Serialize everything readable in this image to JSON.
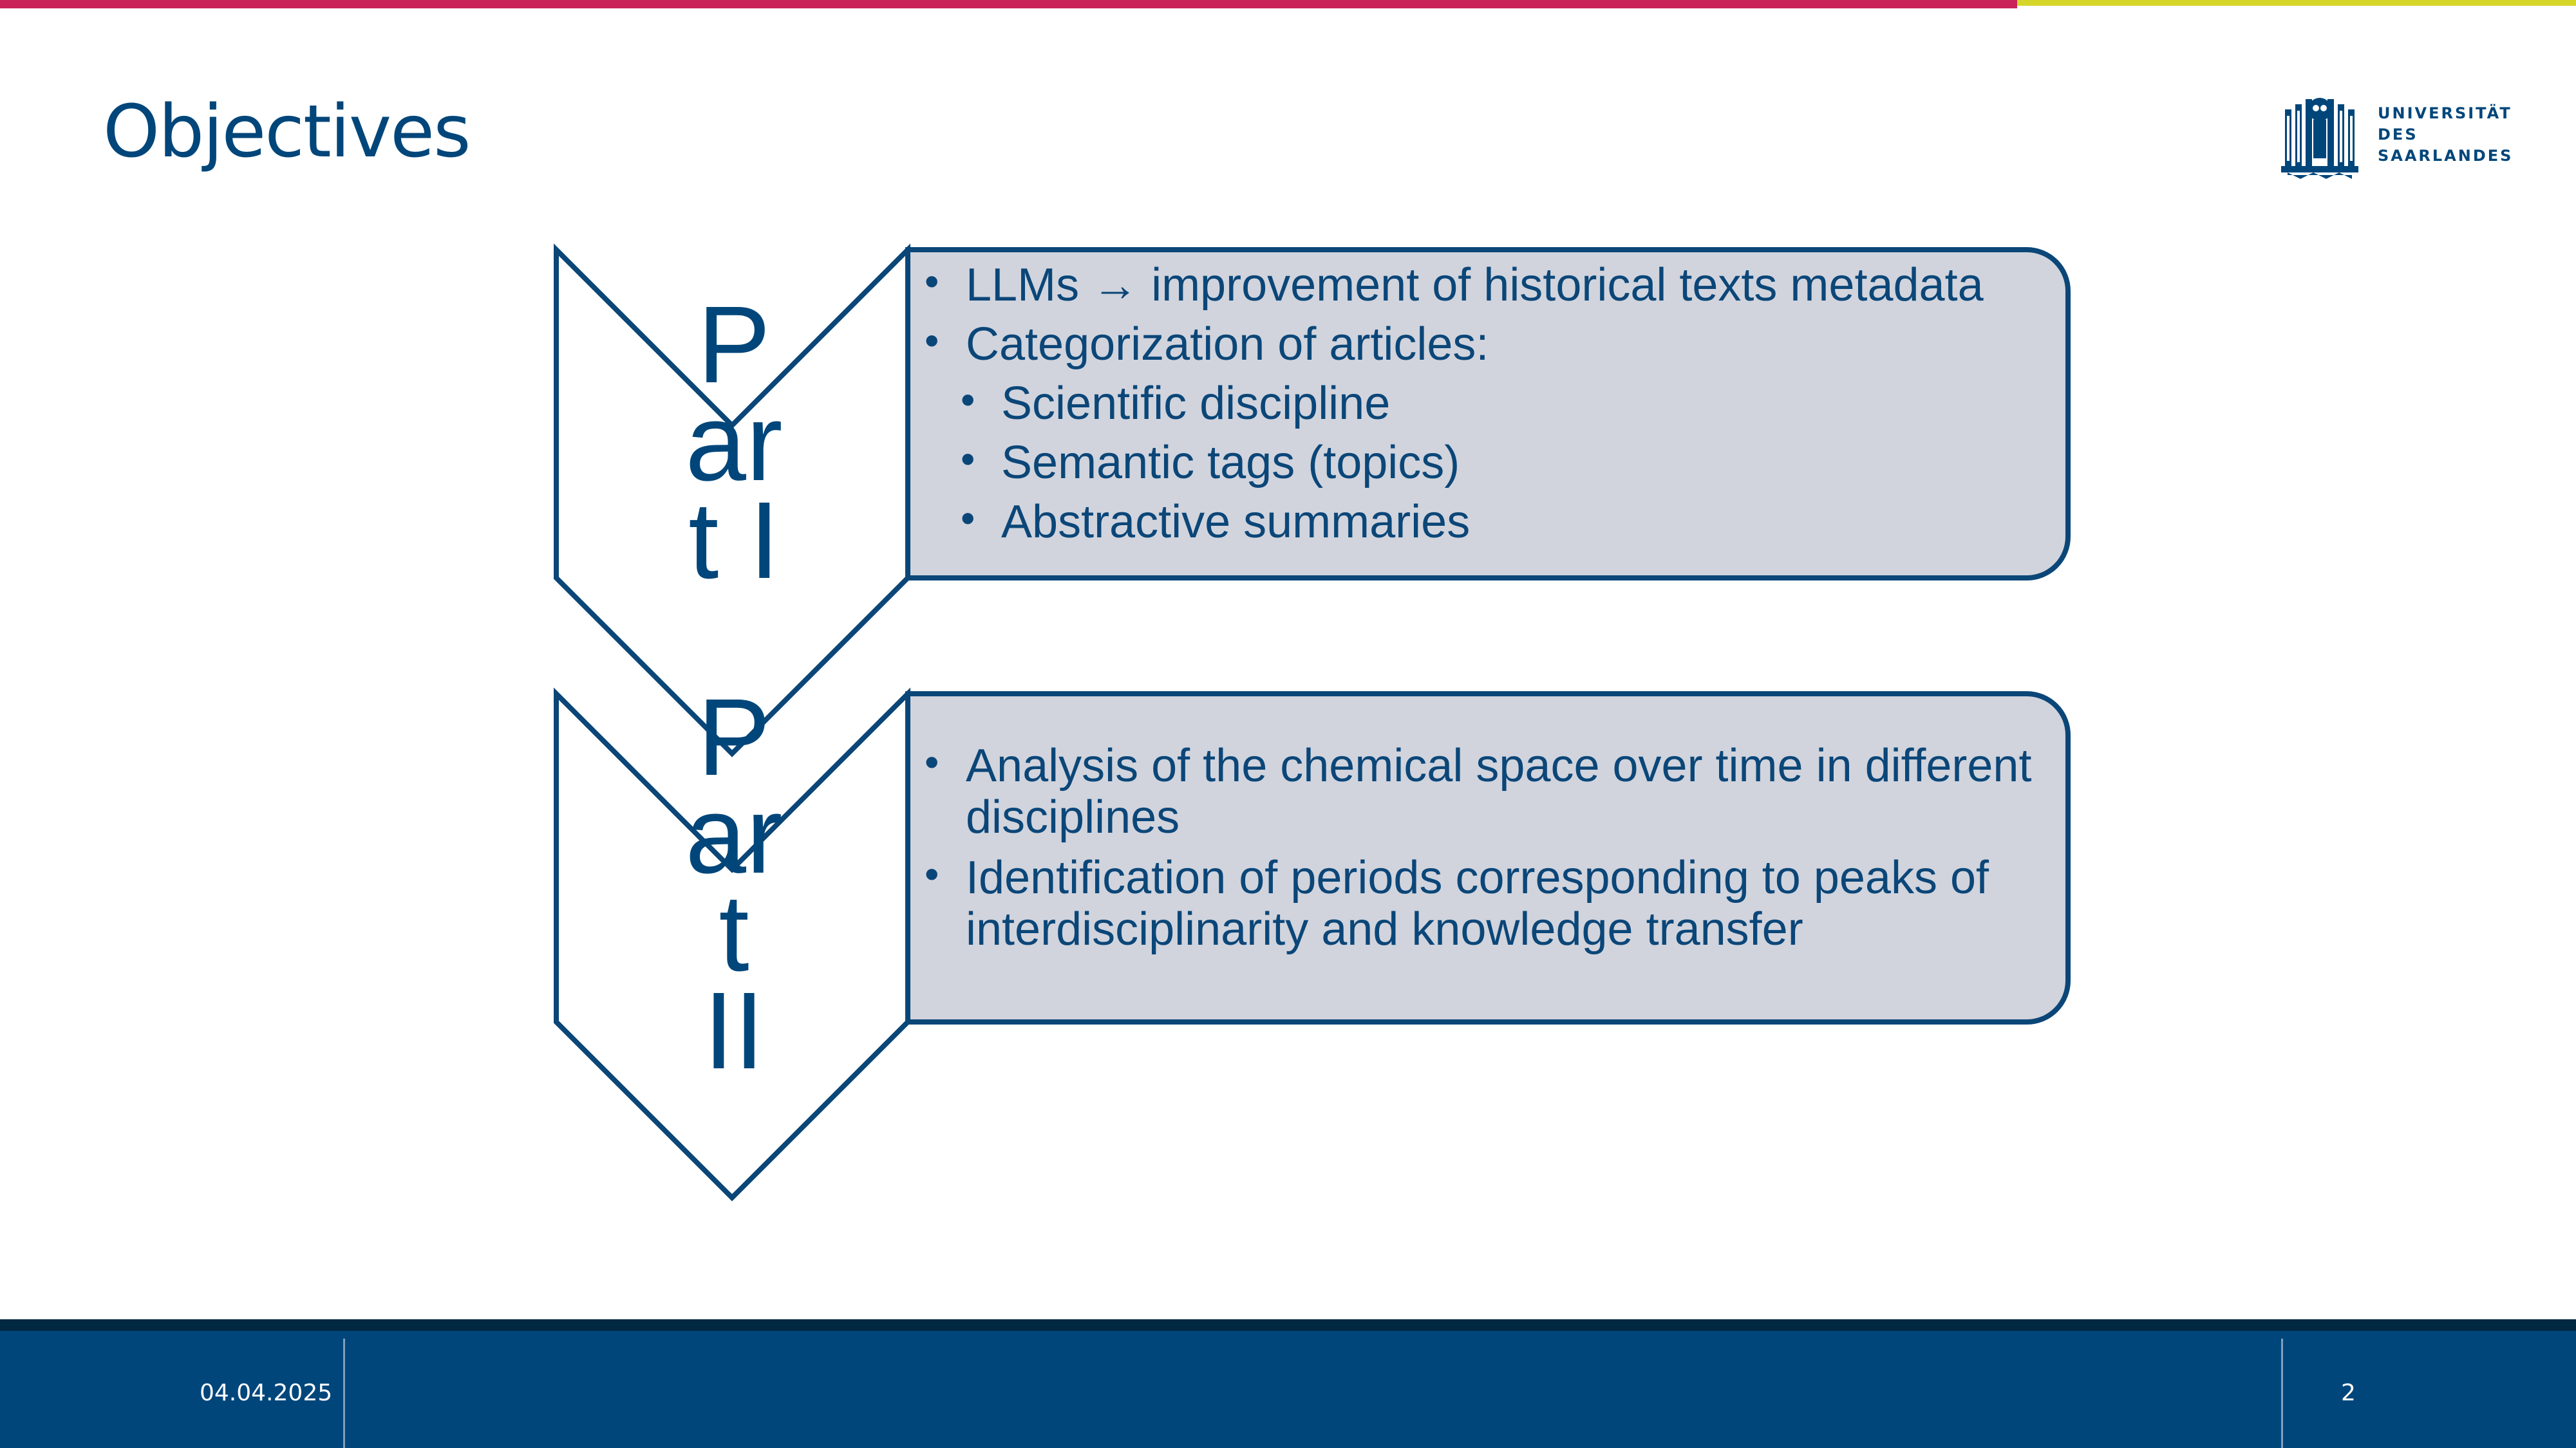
{
  "slide": {
    "title": "Objectives",
    "logo_lines": [
      "UNIVERSITÄT",
      "DES",
      "SAARLANDES"
    ],
    "colors": {
      "accent_magenta": "#c9235a",
      "accent_yellow": "#d6d62a",
      "brand_blue": "#00467a",
      "panel_fill": "#d1d4dd"
    }
  },
  "parts": [
    {
      "label_lines": [
        "P",
        "ar",
        "t I"
      ],
      "bullets": [
        {
          "text": "LLMs → improvement of historical texts metadata",
          "level": 1
        },
        {
          "text": "Categorization of articles:",
          "level": 1
        },
        {
          "text": "Scientific discipline",
          "level": 2
        },
        {
          "text": "Semantic tags (topics)",
          "level": 2
        },
        {
          "text": "Abstractive summaries",
          "level": 2
        }
      ]
    },
    {
      "label_lines": [
        "P",
        "ar",
        "t",
        "II"
      ],
      "bullets": [
        {
          "text": "Analysis of the chemical space over time in different disciplines",
          "level": 1
        },
        {
          "text": "Identification of periods corresponding to peaks of interdisciplinarity and knowledge transfer",
          "level": 1
        }
      ]
    }
  ],
  "footer": {
    "date": "04.04.2025",
    "page_number": "2"
  }
}
